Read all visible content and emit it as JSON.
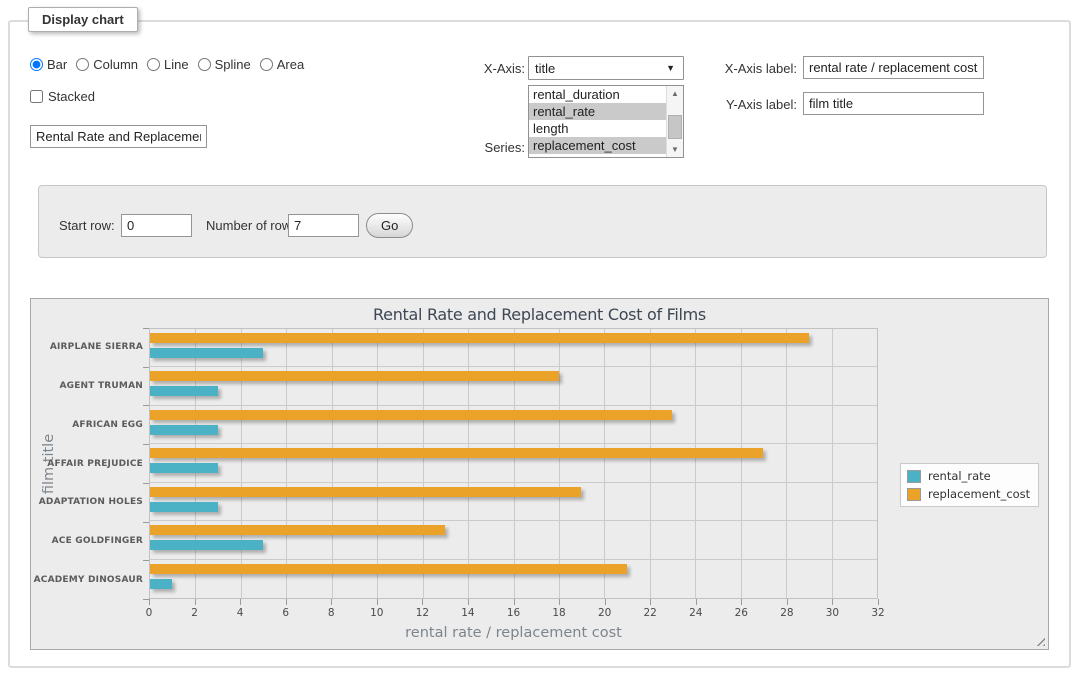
{
  "panel": {
    "title": "Display chart"
  },
  "icons": {
    "select_arrow": "▼",
    "scroll_up": "▲",
    "scroll_down": "▼"
  },
  "chart_type": {
    "options": [
      {
        "label": "Bar",
        "selected": true
      },
      {
        "label": "Column",
        "selected": false
      },
      {
        "label": "Line",
        "selected": false
      },
      {
        "label": "Spline",
        "selected": false
      },
      {
        "label": "Area",
        "selected": false
      }
    ]
  },
  "stacked": {
    "label": "Stacked",
    "checked": false
  },
  "chart_title_input": {
    "value": "Rental Rate and Replacement Cost of Films"
  },
  "x_axis": {
    "label": "X-Axis:",
    "value": "title"
  },
  "series": {
    "label": "Series:",
    "options": [
      {
        "label": "rental_duration",
        "selected": false
      },
      {
        "label": "rental_rate",
        "selected": true
      },
      {
        "label": "length",
        "selected": false
      },
      {
        "label": "replacement_cost",
        "selected": true
      }
    ]
  },
  "axis_labels": {
    "x_label": "X-Axis label:",
    "x_value": "rental rate / replacement cost",
    "y_label": "Y-Axis label:",
    "y_value": "film title"
  },
  "row_controls": {
    "start_row_label": "Start row:",
    "start_row_value": "0",
    "num_rows_label": "Number of rows:",
    "num_rows_value": "7",
    "go_label": "Go"
  },
  "chart_data": {
    "type": "bar",
    "orientation": "horizontal",
    "title": "Rental Rate and Replacement Cost of Films",
    "xlabel": "rental rate / replacement cost",
    "ylabel": "film title",
    "categories": [
      "AIRPLANE SIERRA",
      "AGENT TRUMAN",
      "AFRICAN EGG",
      "AFFAIR PREJUDICE",
      "ADAPTATION HOLES",
      "ACE GOLDFINGER",
      "ACADEMY DINOSAUR"
    ],
    "series": [
      {
        "name": "rental_rate",
        "color": "#4bb2c5",
        "values": [
          4.99,
          2.99,
          2.99,
          2.99,
          2.99,
          4.99,
          0.99
        ]
      },
      {
        "name": "replacement_cost",
        "color": "#EAA228",
        "values": [
          28.99,
          17.99,
          22.99,
          26.99,
          18.99,
          12.99,
          20.99
        ]
      }
    ],
    "xlim": [
      0,
      32
    ],
    "xticks": [
      0,
      2,
      4,
      6,
      8,
      10,
      12,
      14,
      16,
      18,
      20,
      22,
      24,
      26,
      28,
      30,
      32
    ],
    "grid": true,
    "legend_position": "right",
    "background": "#ececec"
  }
}
